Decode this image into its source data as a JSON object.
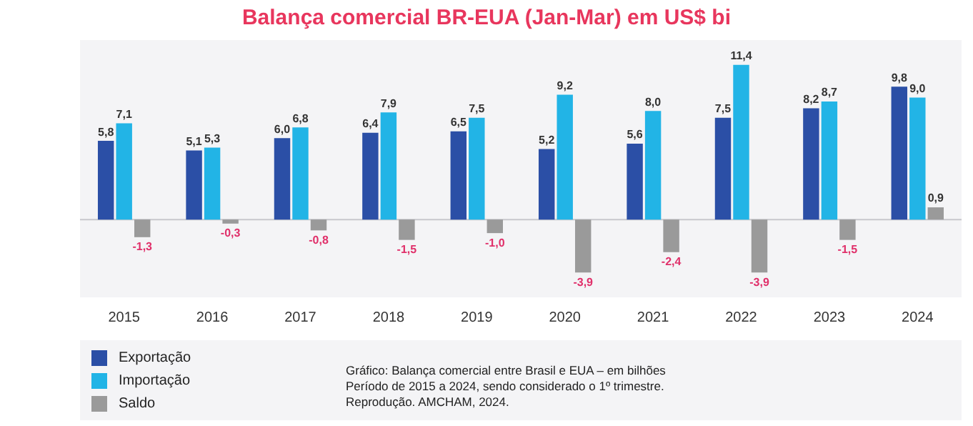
{
  "chart_data": {
    "type": "bar",
    "title": "Balança comercial BR-EUA (Jan-Mar) em US$ bi",
    "categories": [
      "2015",
      "2016",
      "2017",
      "2018",
      "2019",
      "2020",
      "2021",
      "2022",
      "2023",
      "2024"
    ],
    "series": [
      {
        "name": "Exportação",
        "color": "#2b4fa6",
        "values": [
          5.8,
          5.1,
          6.0,
          6.4,
          6.5,
          5.2,
          5.6,
          7.5,
          8.2,
          9.8
        ],
        "value_labels": [
          "5,8",
          "5,1",
          "6,0",
          "6,4",
          "6,5",
          "5,2",
          "5,6",
          "7,5",
          "8,2",
          "9,8"
        ]
      },
      {
        "name": "Importação",
        "color": "#22b4e6",
        "values": [
          7.1,
          5.3,
          6.8,
          7.9,
          7.5,
          9.2,
          8.0,
          11.4,
          8.7,
          9.0
        ],
        "value_labels": [
          "7,1",
          "5,3",
          "6,8",
          "7,9",
          "7,5",
          "9,2",
          "8,0",
          "11,4",
          "8,7",
          "9,0"
        ]
      },
      {
        "name": "Saldo",
        "color": "#9a9a9a",
        "values": [
          -1.3,
          -0.3,
          -0.8,
          -1.5,
          -1.0,
          -3.9,
          -2.4,
          -3.9,
          -1.5,
          0.9
        ],
        "value_labels": [
          "-1,3",
          "-0,3",
          "-0,8",
          "-1,5",
          "-1,0",
          "-3,9",
          "-2,4",
          "-3,9",
          "-1,5",
          "0,9"
        ]
      }
    ],
    "legend": "bottom left",
    "grid": false,
    "annotations": [
      "Gráfico: Balança comercial entre Brasil e EUA – em bilhões\nPeríodo de 2015 a 2024, sendo considerado o 1º trimestre.\nReprodução. AMCHAM, 2024."
    ]
  }
}
